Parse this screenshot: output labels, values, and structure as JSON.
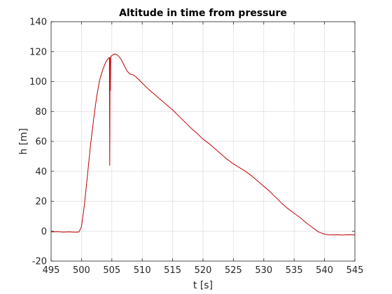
{
  "chart_data": {
    "type": "line",
    "title": "Altitude in time from pressure",
    "xlabel": "t [s]",
    "ylabel": "h [m]",
    "xlim": [
      495,
      545
    ],
    "ylim": [
      -20,
      140
    ],
    "xticks": [
      "495",
      "500",
      "505",
      "510",
      "515",
      "520",
      "525",
      "530",
      "535",
      "540",
      "545"
    ],
    "yticks": [
      "-20",
      "0",
      "20",
      "40",
      "60",
      "80",
      "100",
      "120",
      "140"
    ],
    "grid": true,
    "line_color": "#c00000",
    "series": [
      {
        "x": [
          495.0,
          496.0,
          497.0,
          498.0,
          499.0,
          499.6,
          500.0,
          500.5,
          501.0,
          501.5,
          502.0,
          502.5,
          503.0,
          503.5,
          504.0,
          504.4,
          504.6,
          504.65,
          504.7,
          504.75,
          504.8,
          504.85,
          504.9,
          505.2,
          505.5,
          506.0,
          506.5,
          507.0,
          507.5,
          508.0,
          508.5,
          509.0,
          510.0,
          511.0,
          512.0,
          513.0,
          514.0,
          515.0,
          516.0,
          517.0,
          518.0,
          519.0,
          520.0,
          521.0,
          522.0,
          523.0,
          524.0,
          525.0,
          526.0,
          527.0,
          528.0,
          529.0,
          530.0,
          531.0,
          532.0,
          533.0,
          534.0,
          535.0,
          536.0,
          537.0,
          538.0,
          539.0,
          540.0,
          540.5,
          541.0,
          542.0,
          543.0,
          544.0,
          545.0
        ],
        "y": [
          -0.5,
          -0.3,
          -0.6,
          -0.4,
          -0.7,
          -0.5,
          3.0,
          18.0,
          38.0,
          58.0,
          75.0,
          90.0,
          101.0,
          108.0,
          113.0,
          115.5,
          116.0,
          44.0,
          116.0,
          94.0,
          116.0,
          117.0,
          117.0,
          118.0,
          118.5,
          117.5,
          115.0,
          111.0,
          107.0,
          105.0,
          104.5,
          103.0,
          99.0,
          95.0,
          91.5,
          88.0,
          84.5,
          81.0,
          77.0,
          73.0,
          69.0,
          65.5,
          61.5,
          58.5,
          55.0,
          51.5,
          48.0,
          45.0,
          42.5,
          40.0,
          37.0,
          33.5,
          30.0,
          26.5,
          22.5,
          18.5,
          15.0,
          12.0,
          9.0,
          5.5,
          2.5,
          -0.5,
          -2.0,
          -2.3,
          -2.5,
          -2.4,
          -2.6,
          -2.4,
          -2.5
        ]
      }
    ]
  }
}
